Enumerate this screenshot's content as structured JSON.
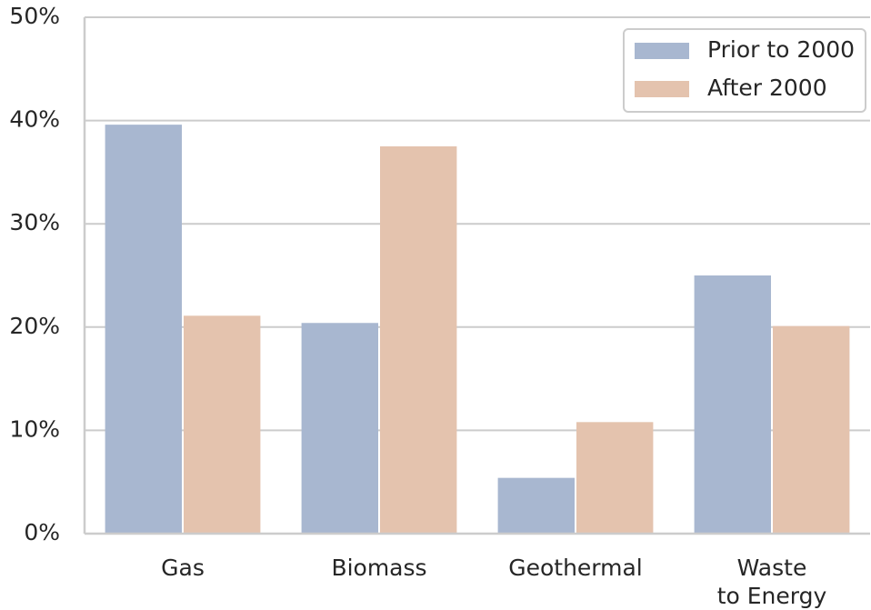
{
  "chart_data": {
    "type": "bar",
    "categories": [
      "Gas",
      "Biomass",
      "Geothermal",
      "Waste\nto Energy"
    ],
    "series": [
      {
        "name": "Prior to 2000",
        "values": [
          39.6,
          20.4,
          5.4,
          25.0
        ],
        "color": "#a8b7d0"
      },
      {
        "name": "After 2000",
        "values": [
          21.1,
          37.5,
          10.8,
          20.1
        ],
        "color": "#e4c3ae"
      }
    ],
    "ylim": [
      0,
      50
    ],
    "yticks": [
      "0%",
      "10%",
      "20%",
      "30%",
      "40%",
      "50%"
    ],
    "grid": "horizontal",
    "legend_position": "top-right",
    "grid_color": "#cccccc",
    "spine_color": "#cccccc",
    "text_color": "#262626"
  }
}
